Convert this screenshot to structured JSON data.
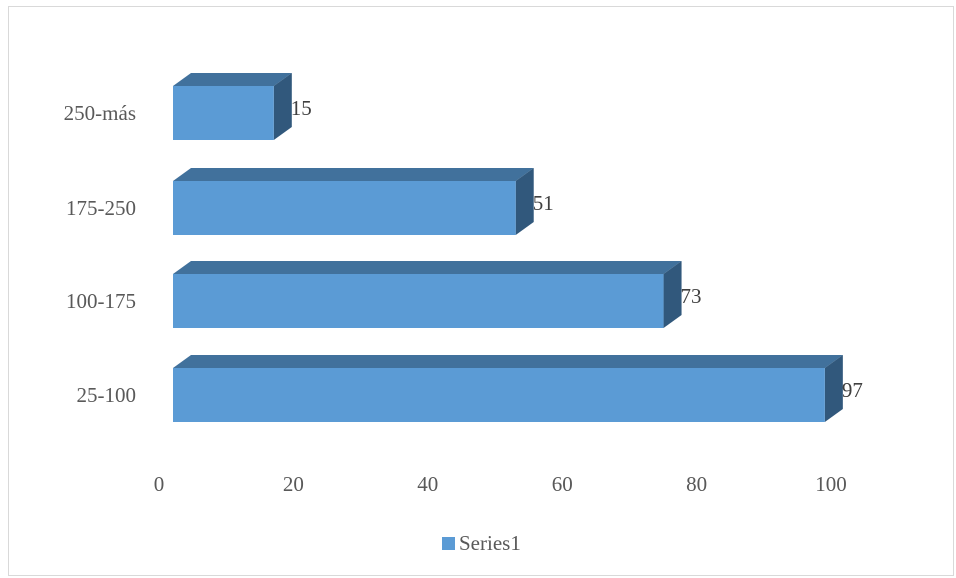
{
  "chart_data": {
    "type": "bar",
    "orientation": "horizontal",
    "style": "3d",
    "categories": [
      "25-100",
      "100-175",
      "175-250",
      "250-más"
    ],
    "series": [
      {
        "name": "Series1",
        "values": [
          97,
          73,
          51,
          15
        ],
        "color": "#5b9bd5"
      }
    ],
    "data_labels": [
      "97",
      "73",
      "51",
      "15"
    ],
    "xlim": [
      0,
      100
    ],
    "xticks": [
      0,
      20,
      40,
      60,
      80,
      100
    ],
    "xtick_labels": [
      "0",
      "20",
      "40",
      "60",
      "80",
      "100"
    ],
    "grid": false,
    "legend_position": "bottom",
    "colors": {
      "bar_front": "#5b9bd5",
      "bar_top": "#41719c",
      "bar_side": "#31587c",
      "text": "#595959",
      "border": "#d9d9d9"
    }
  }
}
